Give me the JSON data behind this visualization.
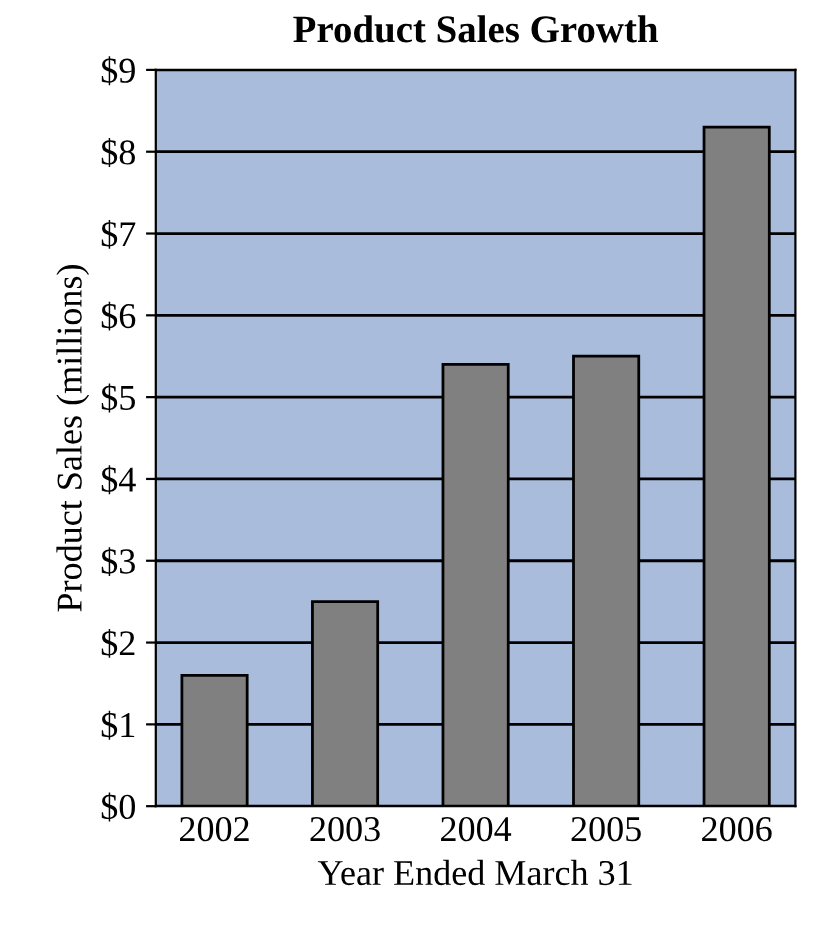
{
  "chart_data": {
    "type": "bar",
    "title": "Product Sales Growth",
    "xlabel": "Year Ended March 31",
    "ylabel": "Product Sales (millions)",
    "categories": [
      "2002",
      "2003",
      "2004",
      "2005",
      "2006"
    ],
    "values": [
      1.6,
      2.5,
      5.4,
      5.5,
      8.3
    ],
    "color": "#808080",
    "ylim": [
      0,
      9
    ],
    "yticks": [
      {
        "value": 0,
        "label": "$0"
      },
      {
        "value": 1,
        "label": "$1"
      },
      {
        "value": 2,
        "label": "$2"
      },
      {
        "value": 3,
        "label": "$3"
      },
      {
        "value": 4,
        "label": "$4"
      },
      {
        "value": 5,
        "label": "$5"
      },
      {
        "value": 6,
        "label": "$6"
      },
      {
        "value": 7,
        "label": "$7"
      },
      {
        "value": 8,
        "label": "$8"
      },
      {
        "value": 9,
        "label": "$9"
      }
    ],
    "grid": "y"
  }
}
